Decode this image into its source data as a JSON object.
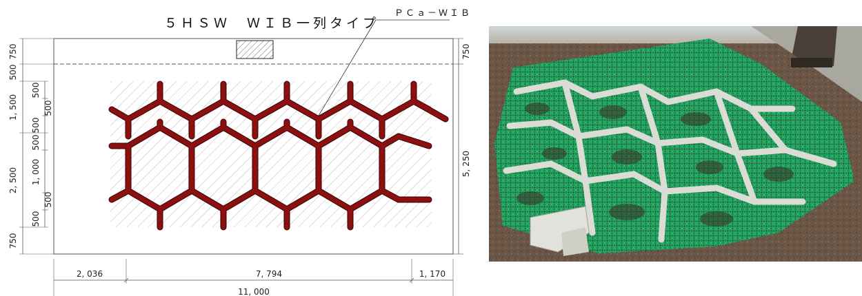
{
  "drawing": {
    "title": "５ＨＳＷ　ＷＩＢ一列タイプ",
    "callout": "ＰＣａ－ＷＩＢ",
    "left_dims": [
      "750",
      "500",
      "1, 500",
      "2, 500",
      "750"
    ],
    "inner_left_dims": [
      "500",
      "500",
      "500",
      "500",
      "1, 000",
      "500",
      "500",
      "500"
    ],
    "right_dims": [
      "750",
      "5, 250"
    ],
    "bottom_dims": [
      "2, 036",
      "7, 794",
      "1, 170"
    ],
    "total_width": "11, 000"
  },
  "photo": {
    "subject": "installed concrete WIB lattice with green netting on soil"
  },
  "colors": {
    "wib_fill": "#8b1010",
    "wib_stroke": "#3a0000",
    "netting": "#1f9a55",
    "concrete": "#d9d9d4",
    "soil": "#6e5a48"
  }
}
